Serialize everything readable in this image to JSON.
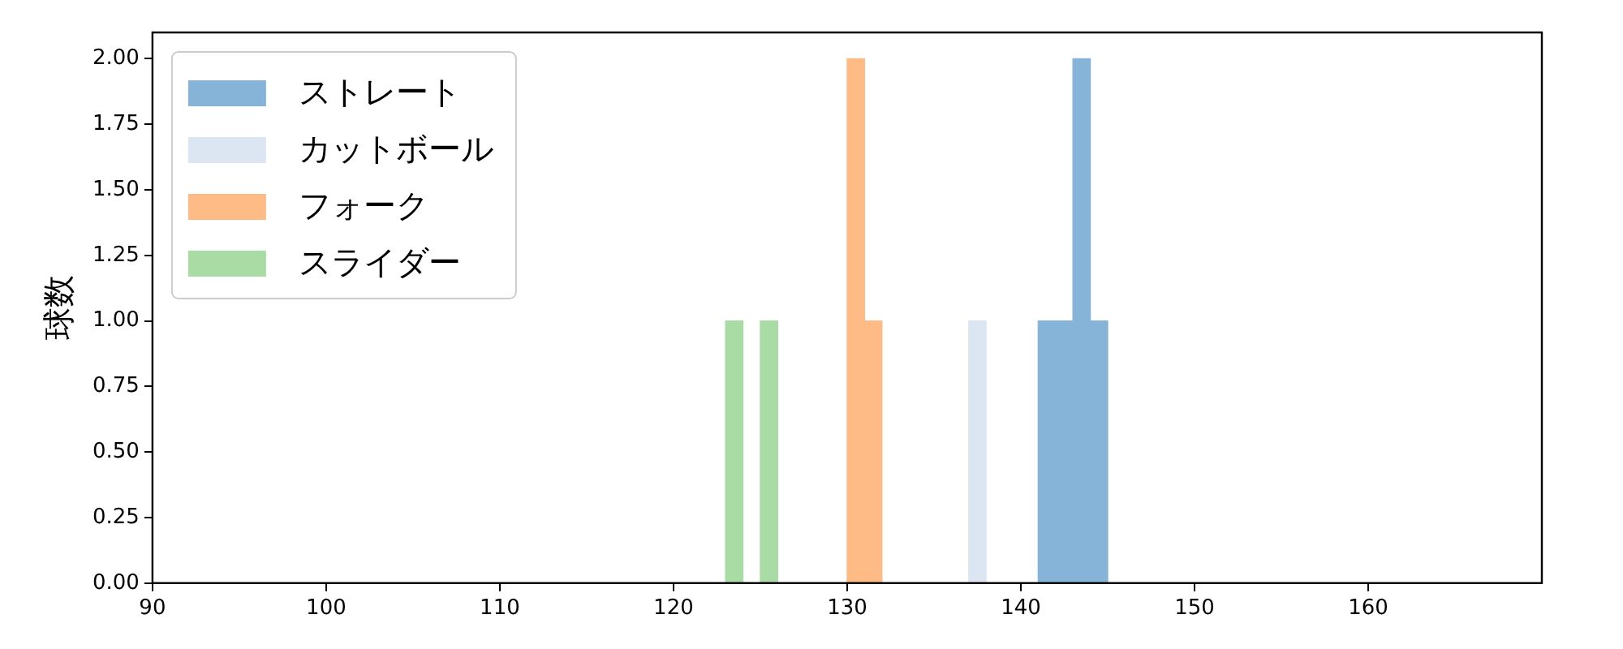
{
  "chart_data": {
    "type": "histogram",
    "ylabel": "球数",
    "xlim": [
      90,
      170
    ],
    "xticks": [
      90,
      100,
      110,
      120,
      130,
      140,
      150,
      160
    ],
    "ylim": [
      0,
      2.1
    ],
    "yticks": [
      {
        "value": 0,
        "label": "0.00"
      },
      {
        "value": 0.25,
        "label": "0.25"
      },
      {
        "value": 0.5,
        "label": "0.50"
      },
      {
        "value": 0.75,
        "label": "0.75"
      },
      {
        "value": 1,
        "label": "1.00"
      },
      {
        "value": 1.25,
        "label": "1.25"
      },
      {
        "value": 1.5,
        "label": "1.50"
      },
      {
        "value": 1.75,
        "label": "1.75"
      },
      {
        "value": 2,
        "label": "2.00"
      }
    ],
    "grid": false,
    "legend": "top left",
    "bins": [
      123,
      124,
      125,
      126,
      127,
      128,
      129,
      130,
      131,
      132,
      133,
      134,
      135,
      136,
      137,
      138,
      139,
      140,
      141,
      142,
      143,
      144,
      145
    ],
    "series": [
      {
        "name": "ストレート",
        "color": "#86b4d9",
        "values": [
          0,
          0,
          0,
          0,
          0,
          0,
          0,
          0,
          0,
          0,
          0,
          0,
          0,
          0,
          0,
          0,
          0,
          0,
          1,
          1,
          2,
          1
        ]
      },
      {
        "name": "カットボール",
        "color": "#dce6f2",
        "values": [
          0,
          0,
          0,
          0,
          0,
          0,
          0,
          0,
          0,
          0,
          0,
          0,
          0,
          0,
          1,
          0,
          0,
          0,
          0,
          0,
          0,
          0
        ]
      },
      {
        "name": "フォーク",
        "color": "#ffbb85",
        "values": [
          0,
          0,
          0,
          0,
          0,
          0,
          0,
          2,
          1,
          0,
          0,
          0,
          0,
          0,
          0,
          0,
          0,
          0,
          0,
          0,
          0,
          0
        ]
      },
      {
        "name": "スライダー",
        "color": "#a9dba5",
        "values": [
          1,
          0,
          1,
          0,
          0,
          0,
          0,
          0,
          0,
          0,
          0,
          0,
          0,
          0,
          0,
          0,
          0,
          0,
          0,
          0,
          0,
          0
        ]
      }
    ]
  }
}
